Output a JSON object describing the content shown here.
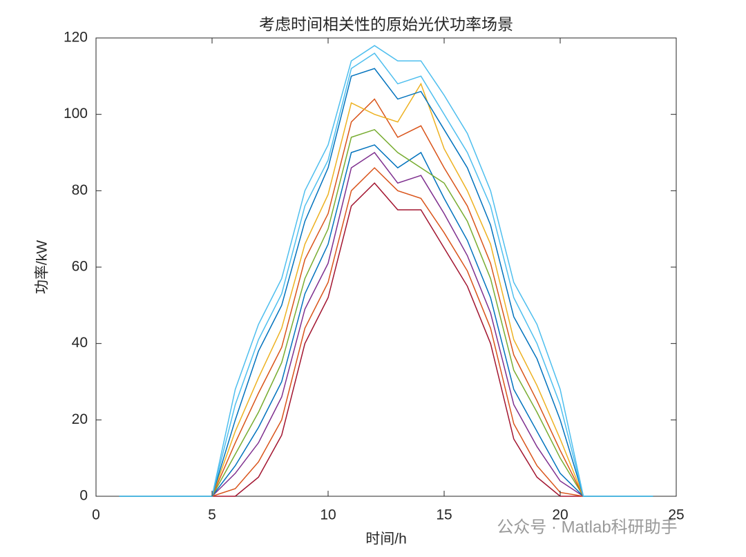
{
  "chart_data": {
    "type": "line",
    "title": "考虑时间相关性的原始光伏功率场景",
    "xlabel": "时间/h",
    "ylabel": "功率/kW",
    "watermark": "公众号 · Matlab科研助手",
    "x": [
      1,
      2,
      3,
      4,
      5,
      6,
      7,
      8,
      9,
      10,
      11,
      12,
      13,
      14,
      15,
      16,
      17,
      18,
      19,
      20,
      21,
      22,
      23,
      24
    ],
    "xlim": [
      0,
      25
    ],
    "xticks": [
      0,
      5,
      10,
      15,
      20,
      25
    ],
    "ylim": [
      0,
      120
    ],
    "yticks": [
      0,
      20,
      40,
      60,
      80,
      100,
      120
    ],
    "series": [
      {
        "color": "#A2142F",
        "values": [
          0,
          0,
          0,
          0,
          0,
          0,
          5,
          16,
          40,
          52,
          76,
          82,
          75,
          75,
          65,
          55,
          40,
          15,
          5,
          0,
          0,
          0,
          0,
          0
        ]
      },
      {
        "color": "#D95319",
        "values": [
          0,
          0,
          0,
          0,
          0,
          2,
          9,
          20,
          44,
          56,
          80,
          86,
          80,
          78,
          69,
          59,
          44,
          19,
          8,
          1,
          0,
          0,
          0,
          0
        ]
      },
      {
        "color": "#7E2F8E",
        "values": [
          0,
          0,
          0,
          0,
          0,
          6,
          14,
          26,
          49,
          61,
          86,
          90,
          82,
          84,
          74,
          63,
          48,
          24,
          13,
          4,
          0,
          0,
          0,
          0
        ]
      },
      {
        "color": "#0072BD",
        "values": [
          0,
          0,
          0,
          0,
          0,
          8,
          18,
          30,
          53,
          66,
          90,
          92,
          86,
          90,
          78,
          67,
          52,
          28,
          17,
          6,
          0,
          0,
          0,
          0
        ]
      },
      {
        "color": "#77AC30",
        "values": [
          0,
          0,
          0,
          0,
          0,
          11,
          22,
          35,
          57,
          70,
          94,
          96,
          90,
          86,
          82,
          72,
          57,
          33,
          22,
          10,
          0,
          0,
          0,
          0
        ]
      },
      {
        "color": "#D95319",
        "values": [
          0,
          0,
          0,
          0,
          0,
          14,
          27,
          39,
          62,
          74,
          98,
          104,
          94,
          97,
          86,
          76,
          61,
          37,
          25,
          12,
          0,
          0,
          0,
          0
        ]
      },
      {
        "color": "#EDB120",
        "values": [
          0,
          0,
          0,
          0,
          0,
          17,
          31,
          44,
          66,
          79,
          103,
          100,
          98,
          108,
          91,
          80,
          66,
          41,
          29,
          15,
          0,
          0,
          0,
          0
        ]
      },
      {
        "color": "#0072BD",
        "values": [
          0,
          0,
          0,
          0,
          0,
          20,
          38,
          50,
          72,
          86,
          110,
          112,
          104,
          106,
          96,
          86,
          71,
          47,
          36,
          20,
          0,
          0,
          0,
          0
        ]
      },
      {
        "color": "#4DBEEE",
        "values": [
          0,
          0,
          0,
          0,
          0,
          24,
          41,
          53,
          76,
          88,
          112,
          116,
          108,
          110,
          100,
          90,
          76,
          52,
          40,
          24,
          0,
          0,
          0,
          0
        ]
      },
      {
        "color": "#4DBEEE",
        "values": [
          0,
          0,
          0,
          0,
          0,
          28,
          45,
          57,
          80,
          92,
          114,
          118,
          114,
          114,
          105,
          95,
          80,
          56,
          45,
          28,
          0,
          0,
          0,
          0
        ]
      }
    ]
  }
}
